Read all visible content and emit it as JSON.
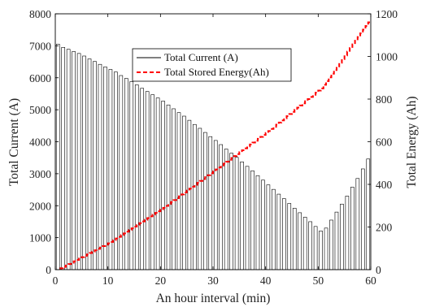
{
  "chart_data": {
    "type": "bar+line",
    "title": "",
    "xlabel": "An hour interval (min)",
    "ylabel_left": "Total Current (A)",
    "ylabel_right": "Total Energy (Ah)",
    "xlim": [
      0,
      60
    ],
    "ylim_left": [
      0,
      8000
    ],
    "ylim_right": [
      0,
      1200
    ],
    "x_ticks": [
      "0",
      "10",
      "20",
      "30",
      "40",
      "50",
      "60"
    ],
    "y_left_ticks": [
      "0",
      "1000",
      "2000",
      "3000",
      "4000",
      "5000",
      "6000",
      "7000",
      "8000"
    ],
    "y_right_ticks": [
      "0",
      "200",
      "400",
      "600",
      "800",
      "1000",
      "1200"
    ],
    "grid": false,
    "legend_position": "top-center",
    "series": [
      {
        "name": "Total Current (A)",
        "type": "bar",
        "color": "#000000",
        "x": [
          0,
          1,
          2,
          3,
          4,
          5,
          6,
          7,
          8,
          9,
          10,
          11,
          12,
          13,
          14,
          15,
          16,
          17,
          18,
          19,
          20,
          21,
          22,
          23,
          24,
          25,
          26,
          27,
          28,
          29,
          30,
          31,
          32,
          33,
          34,
          35,
          36,
          37,
          38,
          39,
          40,
          41,
          42,
          43,
          44,
          45,
          46,
          47,
          48,
          49,
          50,
          51,
          52,
          53,
          54,
          55,
          56,
          57,
          58,
          59
        ],
        "values": [
          7050,
          6950,
          6890,
          6820,
          6760,
          6680,
          6590,
          6510,
          6420,
          6340,
          6260,
          6180,
          6070,
          5980,
          5880,
          5780,
          5670,
          5570,
          5470,
          5370,
          5270,
          5150,
          5030,
          4910,
          4800,
          4670,
          4540,
          4420,
          4290,
          4160,
          4040,
          3910,
          3770,
          3640,
          3510,
          3370,
          3230,
          3090,
          2940,
          2800,
          2650,
          2510,
          2360,
          2220,
          2070,
          1920,
          1780,
          1640,
          1500,
          1350,
          1210,
          1300,
          1550,
          1800,
          2050,
          2300,
          2580,
          2850,
          3150,
          3460
        ]
      },
      {
        "name": "Total Stored Energy(Ah)",
        "type": "line",
        "style": "dashed-step",
        "color": "#ff0000",
        "x": [
          0,
          10,
          20,
          30,
          40,
          50,
          59
        ],
        "values": [
          0,
          130,
          290,
          470,
          650,
          850,
          1160
        ]
      }
    ]
  }
}
